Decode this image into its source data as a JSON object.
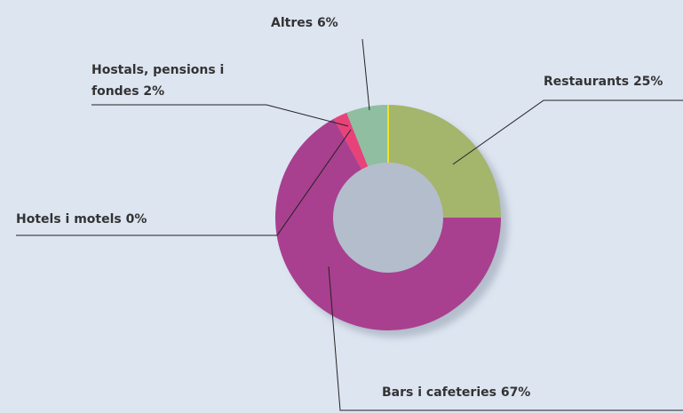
{
  "chart_data": {
    "type": "donut",
    "categories": [
      "Restaurants",
      "Bars i cafeteries",
      "Hotels i motels",
      "Hostals, pensions i fondes",
      "Altres"
    ],
    "values": [
      25,
      67,
      0,
      2,
      6
    ],
    "value_labels": [
      "25%",
      "67%",
      "0%",
      "2%",
      "6%"
    ],
    "colors": [
      "#a4b56c",
      "#a8408f",
      "#f2a445",
      "#e8427b",
      "#8fbea0"
    ]
  }
}
